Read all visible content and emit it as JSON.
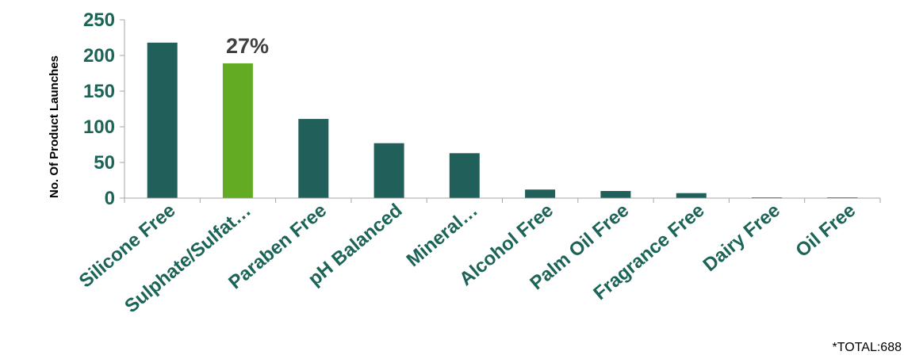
{
  "chart_data": {
    "type": "bar",
    "categories": [
      "Silicone Free",
      "Sulphate/Sulfat…",
      "Paraben Free",
      "pH Balanced",
      "Mineral…",
      "Alcohol Free",
      "Palm Oil Free",
      "Fragrance Free",
      "Dairy Free",
      "Oil Free"
    ],
    "values": [
      218,
      189,
      111,
      77,
      63,
      12,
      10,
      7,
      1,
      1
    ],
    "ylabel": "No. Of Product Launches",
    "ylim": [
      0,
      250
    ],
    "yticks": [
      0,
      50,
      100,
      150,
      200,
      250
    ],
    "grid": false,
    "highlight_index": 1,
    "annotation": "27%",
    "footnote": "*TOTAL:688",
    "colors": {
      "bar": "#215f5a",
      "highlight": "#63ab23",
      "text": "#1b6457"
    }
  }
}
